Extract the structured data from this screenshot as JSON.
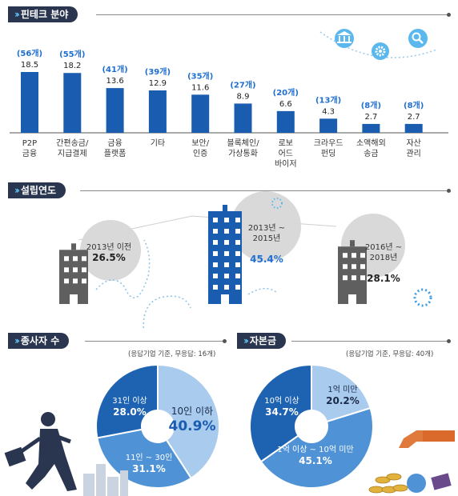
{
  "sections": {
    "fintech": "핀테크 분야",
    "founded": "설립연도",
    "employees": "종사자 수",
    "capital": "자본금"
  },
  "notes": {
    "employees": "(응답기업 기준, 무응답: 16개)",
    "capital": "(응답기업 기준, 무응답: 40개)"
  },
  "colors": {
    "dark": "#2a3550",
    "bar": "#1a5cb0",
    "accent": "#1f6fd0",
    "pie_dark": "#1e63b2",
    "pie_mid": "#4f93d6",
    "pie_light": "#a9cbee"
  },
  "chart_data": [
    {
      "type": "bar",
      "categories": [
        "P2P\n금융",
        "간편송금/\n지급결제",
        "금융\n플랫폼",
        "기타",
        "보안/\n인증",
        "블록체인/\n가상통화",
        "로보\n어드\n바이저",
        "크라우드\n펀딩",
        "소액해외\n송금",
        "자산\n관리"
      ],
      "values": [
        18.5,
        18.2,
        13.6,
        12.9,
        11.6,
        8.9,
        6.6,
        4.3,
        2.7,
        2.7
      ],
      "value_labels": [
        "18.5",
        "18.2",
        "13.6",
        "12.9",
        "11.6",
        "8.9",
        "6.6",
        "4.3",
        "2.7",
        "2.7"
      ],
      "counts": [
        "(56개)",
        "(55개)",
        "(41개)",
        "(39개)",
        "(35개)",
        "(27개)",
        "(20개)",
        "(13개)",
        "(8개)",
        "(8개)"
      ],
      "title": "핀테크 분야"
    },
    {
      "type": "bar",
      "categories": [
        "2013년 이전",
        "2013년 ~\n2015년",
        "2016년 ~\n2018년"
      ],
      "values": [
        26.5,
        45.4,
        28.1
      ],
      "value_labels": [
        "26.5%",
        "45.4%",
        "28.1%"
      ],
      "title": "설립연도"
    },
    {
      "type": "pie",
      "title": "종사자 수",
      "labels": [
        "10인 이하",
        "11인 ~ 30인",
        "31인 이상"
      ],
      "values": [
        40.9,
        31.1,
        28.0
      ],
      "value_labels": [
        "40.9%",
        "31.1%",
        "28.0%"
      ]
    },
    {
      "type": "pie",
      "title": "자본금",
      "labels": [
        "1억 미만",
        "1억 이상 ~ 10억 미만",
        "10억 이상"
      ],
      "values": [
        20.2,
        45.1,
        34.7
      ],
      "value_labels": [
        "20.2%",
        "45.1%",
        "34.7%"
      ]
    }
  ]
}
